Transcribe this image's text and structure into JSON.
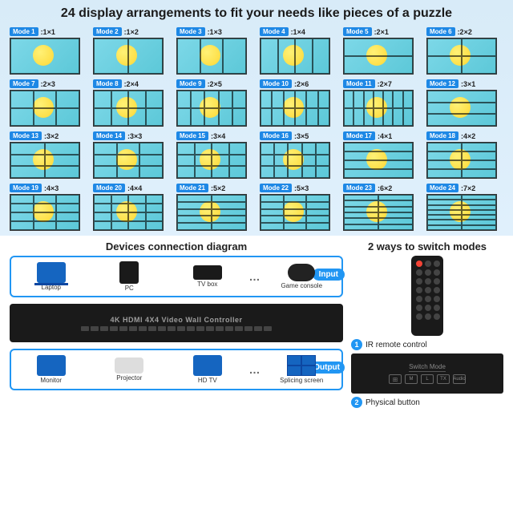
{
  "title": "24 display arrangements to fit your needs like pieces of a puzzle",
  "modes": [
    {
      "n": 1,
      "r": "1×1",
      "cols": 1,
      "rows": 1
    },
    {
      "n": 2,
      "r": "1×2",
      "cols": 2,
      "rows": 1
    },
    {
      "n": 3,
      "r": "1×3",
      "cols": 3,
      "rows": 1
    },
    {
      "n": 4,
      "r": "1×4",
      "cols": 4,
      "rows": 1
    },
    {
      "n": 5,
      "r": "2×1",
      "cols": 1,
      "rows": 2
    },
    {
      "n": 6,
      "r": "2×2",
      "cols": 2,
      "rows": 2
    },
    {
      "n": 7,
      "r": "2×3",
      "cols": 3,
      "rows": 2
    },
    {
      "n": 8,
      "r": "2×4",
      "cols": 4,
      "rows": 2
    },
    {
      "n": 9,
      "r": "2×5",
      "cols": 5,
      "rows": 2
    },
    {
      "n": 10,
      "r": "2×6",
      "cols": 6,
      "rows": 2
    },
    {
      "n": 11,
      "r": "2×7",
      "cols": 7,
      "rows": 2
    },
    {
      "n": 12,
      "r": "3×1",
      "cols": 1,
      "rows": 3
    },
    {
      "n": 13,
      "r": "3×2",
      "cols": 2,
      "rows": 3
    },
    {
      "n": 14,
      "r": "3×3",
      "cols": 3,
      "rows": 3
    },
    {
      "n": 15,
      "r": "3×4",
      "cols": 4,
      "rows": 3
    },
    {
      "n": 16,
      "r": "3×5",
      "cols": 5,
      "rows": 3
    },
    {
      "n": 17,
      "r": "4×1",
      "cols": 1,
      "rows": 4
    },
    {
      "n": 18,
      "r": "4×2",
      "cols": 2,
      "rows": 4
    },
    {
      "n": 19,
      "r": "4×3",
      "cols": 3,
      "rows": 4
    },
    {
      "n": 20,
      "r": "4×4",
      "cols": 4,
      "rows": 4
    },
    {
      "n": 21,
      "r": "5×2",
      "cols": 2,
      "rows": 5
    },
    {
      "n": 22,
      "r": "5×3",
      "cols": 3,
      "rows": 5
    },
    {
      "n": 23,
      "r": "6×2",
      "cols": 2,
      "rows": 6
    },
    {
      "n": 24,
      "r": "7×2",
      "cols": 2,
      "rows": 7
    }
  ],
  "diagram_title": "Devices connection diagram",
  "ways_title": "2 ways to switch modes",
  "input_label": "Input",
  "output_label": "Output",
  "controller_name": "4K HDMI 4X4 Video Wall Controller",
  "inputs": [
    {
      "label": "Laptop",
      "cls": "laptop"
    },
    {
      "label": "PC",
      "cls": "pc"
    },
    {
      "label": "TV box",
      "cls": "tvbox"
    },
    {
      "label": "Game console",
      "cls": "gamepad"
    }
  ],
  "outputs": [
    {
      "label": "Monitor",
      "cls": "monitor"
    },
    {
      "label": "Projector",
      "cls": "projector"
    },
    {
      "label": "HD TV",
      "cls": "hdtv"
    },
    {
      "label": "Splicing screen",
      "cls": "splice"
    }
  ],
  "way1": "IR remote control",
  "way2": "Physical button",
  "panel_title": "Switch Mode",
  "panel_buttons": [
    "田",
    "M",
    "L",
    "TX",
    "Audio"
  ],
  "colors": {
    "accent": "#2196f3",
    "badge": "#1e88e5",
    "bg_gradient_top": "#d8ebf8",
    "thumb_bg": "#7dd8e8",
    "lemon": "#fdd835"
  }
}
